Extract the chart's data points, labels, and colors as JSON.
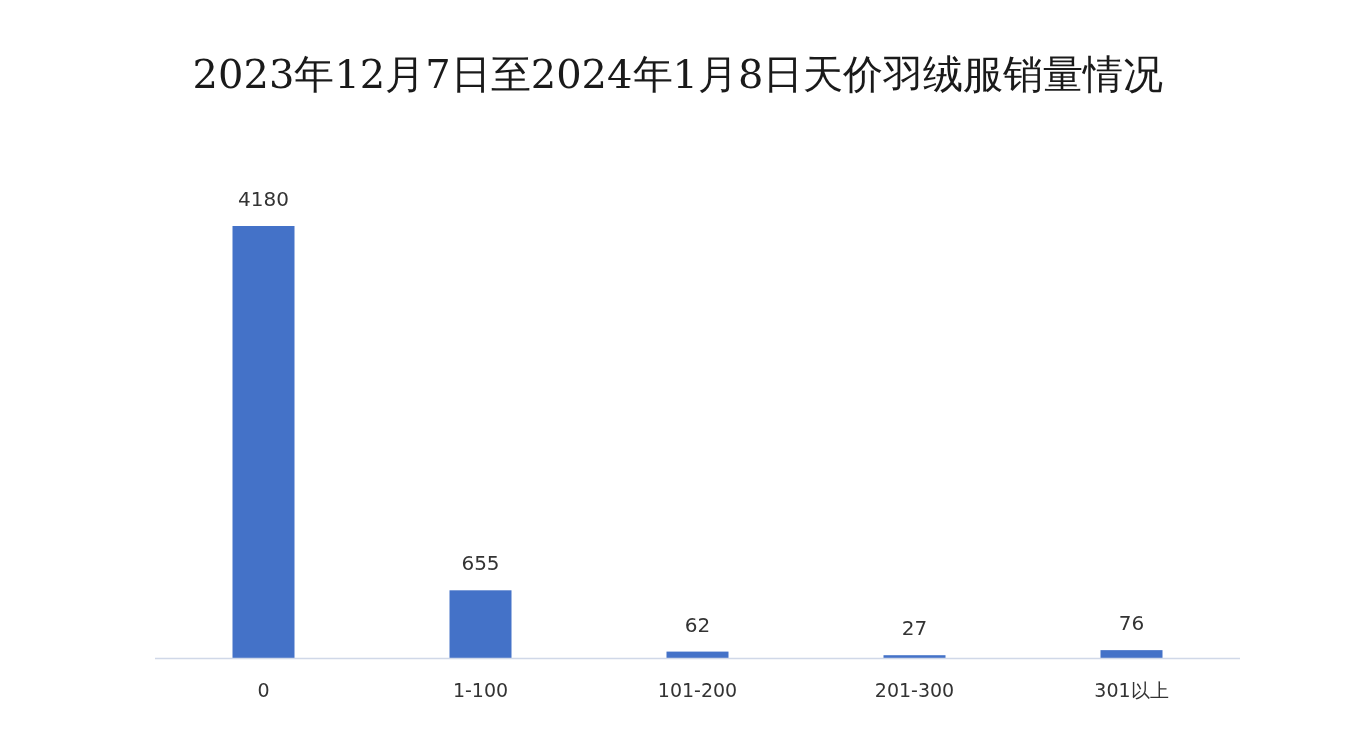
{
  "chart_data": {
    "type": "bar",
    "title": "2023年12月7日至2024年1月8日天价羽绒服销量情况",
    "categories": [
      "0",
      "1-100",
      "101-200",
      "201-300",
      "301以上"
    ],
    "values": [
      4180,
      655,
      62,
      27,
      76
    ],
    "color": "#4472c8",
    "data_labels": true
  }
}
